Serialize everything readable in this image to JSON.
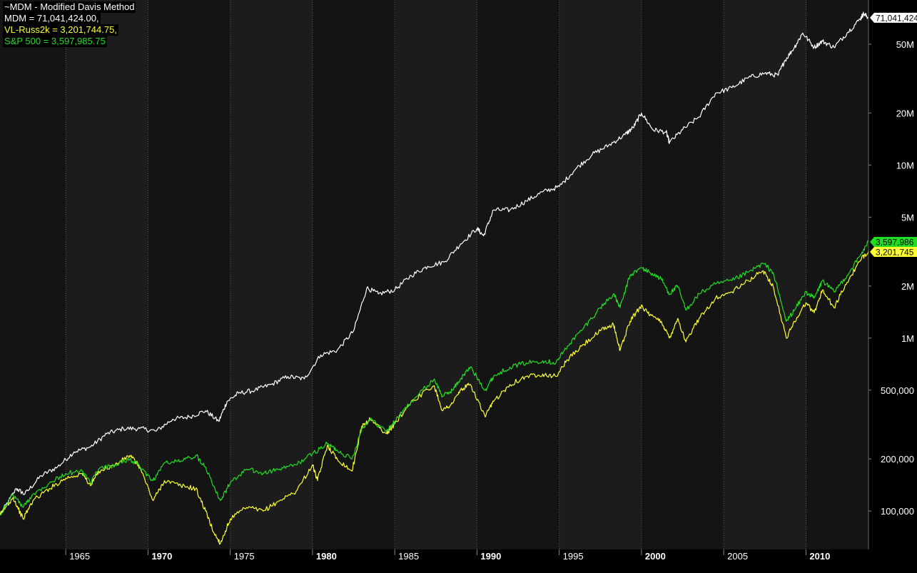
{
  "legend": {
    "title": "~MDM - Modified Davis Method",
    "mdm": "MDM = 71,041,424.00,",
    "russ": "VL-Russ2k = 3,201,744.75,",
    "sp": "S&P 500 = 3,597,985.75"
  },
  "colors": {
    "background": "#000000",
    "band_dark": "#1c1c1c",
    "band_darker": "#141414",
    "mdm": "#ffffff",
    "russ": "#ffff33",
    "sp": "#22dd22"
  },
  "chart_data": {
    "type": "line",
    "title": "~MDM - Modified Davis Method",
    "y_scale": "log",
    "ylim": [
      60000,
      90000000
    ],
    "xlim": [
      1961.0,
      2013.8
    ],
    "grid": "vertical dotted at 5-year marks",
    "y_ticks": [
      {
        "v": 50000000,
        "label": "50M"
      },
      {
        "v": 20000000,
        "label": "20M"
      },
      {
        "v": 10000000,
        "label": "10M"
      },
      {
        "v": 5000000,
        "label": "5M"
      },
      {
        "v": 2000000,
        "label": "2M"
      },
      {
        "v": 1000000,
        "label": "1M"
      },
      {
        "v": 500000,
        "label": "500,000"
      },
      {
        "v": 200000,
        "label": "200,000"
      },
      {
        "v": 100000,
        "label": "100,000"
      }
    ],
    "x_ticks": [
      {
        "v": 1965,
        "label": "1965",
        "bold": false
      },
      {
        "v": 1970,
        "label": "1970",
        "bold": true
      },
      {
        "v": 1975,
        "label": "1975",
        "bold": false
      },
      {
        "v": 1980,
        "label": "1980",
        "bold": true
      },
      {
        "v": 1985,
        "label": "1985",
        "bold": false
      },
      {
        "v": 1990,
        "label": "1990",
        "bold": true
      },
      {
        "v": 1995,
        "label": "1995",
        "bold": false
      },
      {
        "v": 2000,
        "label": "2000",
        "bold": true
      },
      {
        "v": 2005,
        "label": "2005",
        "bold": false
      },
      {
        "v": 2010,
        "label": "2010",
        "bold": true
      }
    ],
    "last_value_labels": [
      {
        "series": "MDM",
        "label": "71,041,424",
        "v": 71041424
      },
      {
        "series": "S&P 500",
        "label": "3,597,986",
        "v": 3597986
      },
      {
        "series": "VL-Russ2k",
        "label": "3,201,745",
        "v": 3201745
      }
    ],
    "series": [
      {
        "name": "MDM",
        "color": "#ffffff",
        "points": [
          [
            1961.0,
            95000
          ],
          [
            1962.0,
            135000
          ],
          [
            1962.5,
            125000
          ],
          [
            1963.5,
            160000
          ],
          [
            1964.5,
            180000
          ],
          [
            1965.5,
            220000
          ],
          [
            1966.5,
            235000
          ],
          [
            1967.5,
            280000
          ],
          [
            1968.5,
            300000
          ],
          [
            1969.5,
            300000
          ],
          [
            1970.5,
            290000
          ],
          [
            1971.5,
            340000
          ],
          [
            1972.5,
            350000
          ],
          [
            1973.5,
            380000
          ],
          [
            1974.3,
            330000
          ],
          [
            1974.8,
            430000
          ],
          [
            1975.5,
            480000
          ],
          [
            1976.5,
            500000
          ],
          [
            1977.5,
            540000
          ],
          [
            1978.5,
            600000
          ],
          [
            1979.5,
            580000
          ],
          [
            1980.5,
            800000
          ],
          [
            1981.5,
            850000
          ],
          [
            1982.5,
            1100000
          ],
          [
            1983.3,
            1950000
          ],
          [
            1984.0,
            1800000
          ],
          [
            1985.0,
            1900000
          ],
          [
            1986.0,
            2300000
          ],
          [
            1987.0,
            2600000
          ],
          [
            1988.0,
            2750000
          ],
          [
            1989.0,
            3500000
          ],
          [
            1990.0,
            4300000
          ],
          [
            1990.4,
            3900000
          ],
          [
            1991.0,
            5500000
          ],
          [
            1992.0,
            5500000
          ],
          [
            1993.0,
            6200000
          ],
          [
            1994.0,
            7000000
          ],
          [
            1995.0,
            7500000
          ],
          [
            1996.0,
            9500000
          ],
          [
            1997.0,
            11500000
          ],
          [
            1998.0,
            13000000
          ],
          [
            1999.0,
            15000000
          ],
          [
            1999.5,
            16500000
          ],
          [
            2000.0,
            20000000
          ],
          [
            2000.7,
            16000000
          ],
          [
            2001.5,
            15500000
          ],
          [
            2001.7,
            13500000
          ],
          [
            2002.5,
            16000000
          ],
          [
            2003.5,
            19000000
          ],
          [
            2004.5,
            26000000
          ],
          [
            2005.5,
            28000000
          ],
          [
            2006.5,
            32000000
          ],
          [
            2007.5,
            34000000
          ],
          [
            2008.3,
            33000000
          ],
          [
            2008.7,
            40000000
          ],
          [
            2009.3,
            48000000
          ],
          [
            2009.8,
            58000000
          ],
          [
            2010.5,
            48000000
          ],
          [
            2011.0,
            52000000
          ],
          [
            2011.7,
            48000000
          ],
          [
            2012.5,
            58000000
          ],
          [
            2013.3,
            70000000
          ],
          [
            2013.5,
            75000000
          ],
          [
            2013.8,
            71041424
          ]
        ]
      },
      {
        "name": "VL-Russ2k",
        "color": "#ffff33",
        "points": [
          [
            1961.0,
            95000
          ],
          [
            1961.8,
            120000
          ],
          [
            1962.4,
            90000
          ],
          [
            1963.0,
            115000
          ],
          [
            1964.0,
            135000
          ],
          [
            1965.0,
            155000
          ],
          [
            1966.0,
            165000
          ],
          [
            1966.5,
            140000
          ],
          [
            1967.0,
            170000
          ],
          [
            1968.0,
            185000
          ],
          [
            1968.9,
            210000
          ],
          [
            1969.5,
            180000
          ],
          [
            1970.3,
            115000
          ],
          [
            1971.0,
            150000
          ],
          [
            1972.0,
            140000
          ],
          [
            1972.9,
            135000
          ],
          [
            1973.5,
            100000
          ],
          [
            1974.0,
            75000
          ],
          [
            1974.4,
            65000
          ],
          [
            1975.0,
            90000
          ],
          [
            1976.0,
            105000
          ],
          [
            1977.0,
            100000
          ],
          [
            1978.0,
            115000
          ],
          [
            1979.0,
            130000
          ],
          [
            1980.0,
            185000
          ],
          [
            1980.3,
            150000
          ],
          [
            1980.9,
            240000
          ],
          [
            1981.5,
            200000
          ],
          [
            1982.4,
            170000
          ],
          [
            1983.0,
            310000
          ],
          [
            1983.5,
            340000
          ],
          [
            1984.5,
            280000
          ],
          [
            1985.0,
            320000
          ],
          [
            1986.0,
            430000
          ],
          [
            1987.4,
            530000
          ],
          [
            1987.9,
            380000
          ],
          [
            1988.5,
            420000
          ],
          [
            1989.0,
            500000
          ],
          [
            1989.6,
            540000
          ],
          [
            1990.5,
            350000
          ],
          [
            1991.0,
            430000
          ],
          [
            1992.0,
            540000
          ],
          [
            1993.0,
            600000
          ],
          [
            1994.0,
            620000
          ],
          [
            1994.8,
            600000
          ],
          [
            1995.5,
            750000
          ],
          [
            1996.5,
            920000
          ],
          [
            1997.5,
            1100000
          ],
          [
            1998.3,
            1200000
          ],
          [
            1998.7,
            850000
          ],
          [
            1999.3,
            1250000
          ],
          [
            2000.0,
            1550000
          ],
          [
            2000.5,
            1350000
          ],
          [
            2001.2,
            1250000
          ],
          [
            2001.7,
            1000000
          ],
          [
            2002.2,
            1300000
          ],
          [
            2002.7,
            950000
          ],
          [
            2003.5,
            1300000
          ],
          [
            2004.5,
            1700000
          ],
          [
            2005.5,
            1850000
          ],
          [
            2006.5,
            2150000
          ],
          [
            2007.4,
            2450000
          ],
          [
            2008.0,
            2000000
          ],
          [
            2008.8,
            1000000
          ],
          [
            2009.3,
            1250000
          ],
          [
            2010.0,
            1600000
          ],
          [
            2010.5,
            1400000
          ],
          [
            2011.0,
            1900000
          ],
          [
            2011.7,
            1500000
          ],
          [
            2012.5,
            2100000
          ],
          [
            2013.3,
            2800000
          ],
          [
            2013.8,
            3201745
          ]
        ]
      },
      {
        "name": "S&P 500",
        "color": "#22dd22",
        "points": [
          [
            1961.0,
            95000
          ],
          [
            1961.8,
            125000
          ],
          [
            1962.4,
            105000
          ],
          [
            1963.0,
            125000
          ],
          [
            1964.0,
            145000
          ],
          [
            1965.0,
            165000
          ],
          [
            1966.0,
            170000
          ],
          [
            1966.5,
            145000
          ],
          [
            1967.0,
            175000
          ],
          [
            1968.0,
            185000
          ],
          [
            1968.9,
            200000
          ],
          [
            1969.5,
            180000
          ],
          [
            1970.3,
            150000
          ],
          [
            1971.0,
            190000
          ],
          [
            1972.0,
            195000
          ],
          [
            1972.9,
            210000
          ],
          [
            1973.5,
            180000
          ],
          [
            1974.4,
            115000
          ],
          [
            1975.0,
            145000
          ],
          [
            1976.0,
            175000
          ],
          [
            1977.0,
            165000
          ],
          [
            1978.0,
            175000
          ],
          [
            1979.0,
            185000
          ],
          [
            1980.0,
            215000
          ],
          [
            1980.9,
            245000
          ],
          [
            1981.5,
            225000
          ],
          [
            1982.4,
            200000
          ],
          [
            1983.0,
            300000
          ],
          [
            1983.5,
            340000
          ],
          [
            1984.5,
            290000
          ],
          [
            1985.0,
            330000
          ],
          [
            1986.0,
            430000
          ],
          [
            1987.4,
            580000
          ],
          [
            1987.9,
            460000
          ],
          [
            1988.5,
            500000
          ],
          [
            1989.0,
            580000
          ],
          [
            1989.6,
            680000
          ],
          [
            1990.5,
            500000
          ],
          [
            1991.0,
            600000
          ],
          [
            1992.0,
            680000
          ],
          [
            1993.0,
            720000
          ],
          [
            1994.0,
            740000
          ],
          [
            1994.8,
            720000
          ],
          [
            1995.5,
            900000
          ],
          [
            1996.5,
            1150000
          ],
          [
            1997.5,
            1500000
          ],
          [
            1998.3,
            1800000
          ],
          [
            1998.7,
            1500000
          ],
          [
            1999.3,
            2300000
          ],
          [
            2000.0,
            2550000
          ],
          [
            2000.5,
            2400000
          ],
          [
            2001.2,
            2200000
          ],
          [
            2001.7,
            1800000
          ],
          [
            2002.2,
            2000000
          ],
          [
            2002.7,
            1450000
          ],
          [
            2003.5,
            1800000
          ],
          [
            2004.5,
            2050000
          ],
          [
            2005.5,
            2150000
          ],
          [
            2006.5,
            2400000
          ],
          [
            2007.4,
            2700000
          ],
          [
            2008.0,
            2400000
          ],
          [
            2008.8,
            1250000
          ],
          [
            2009.3,
            1450000
          ],
          [
            2010.0,
            1850000
          ],
          [
            2010.5,
            1700000
          ],
          [
            2011.0,
            2150000
          ],
          [
            2011.7,
            1850000
          ],
          [
            2012.5,
            2300000
          ],
          [
            2013.3,
            3000000
          ],
          [
            2013.8,
            3597986
          ]
        ]
      }
    ]
  }
}
